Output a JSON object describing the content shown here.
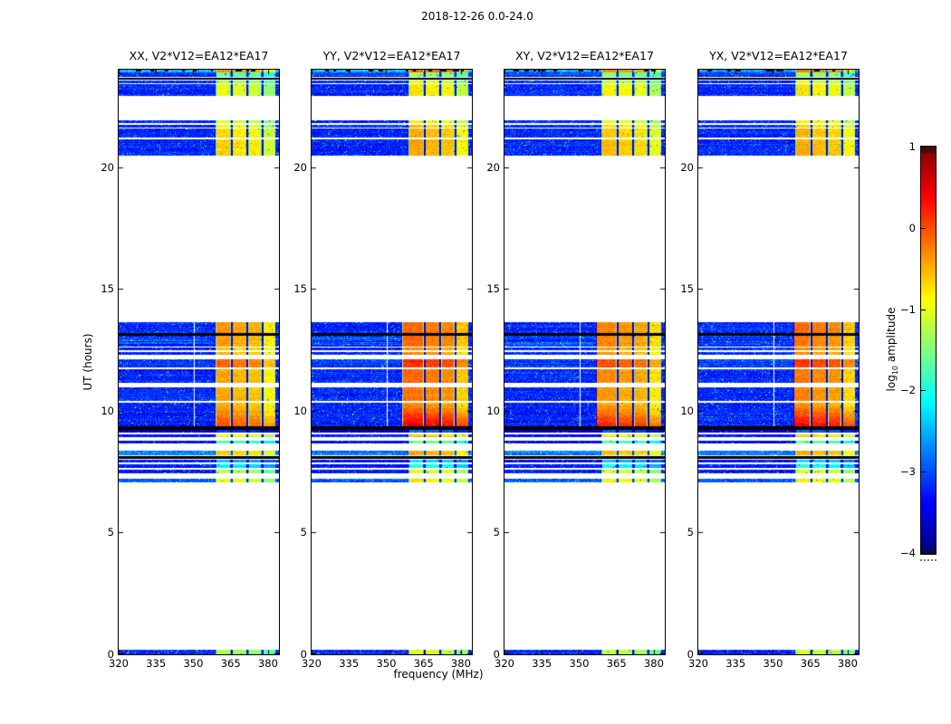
{
  "suptitle": "2018-12-26 0.0-24.0",
  "chart_data": {
    "type": "heatmap",
    "suptitle": "2018-12-26 0.0-24.0",
    "description": "Four dynamic-spectrum (frequency vs UT time) correlation amplitude panels, jet colormap, mostly low-amplitude blue background with bright RFI band near 358-383 MHz and data gaps (white) / flagged rows (black).",
    "panels": [
      {
        "title": "XX, V2*V12=EA12*EA17",
        "seed": 11,
        "bright_boost": 0.0,
        "first_col_shift": 0.0,
        "bottom_gradient": 0.55
      },
      {
        "title": "YY, V2*V12=EA12*EA17",
        "seed": 22,
        "bright_boost": 0.25,
        "first_col_shift": -2.5,
        "bottom_gradient": 0.9
      },
      {
        "title": "XY, V2*V12=EA12*EA17",
        "seed": 33,
        "bright_boost": 0.1,
        "first_col_shift": -2.0,
        "bottom_gradient": 0.7
      },
      {
        "title": "YX, V2*V12=EA12*EA17",
        "seed": 44,
        "bright_boost": 0.2,
        "first_col_shift": -0.5,
        "bottom_gradient": 0.8
      }
    ],
    "x_axis": {
      "label": "frequency (MHz)",
      "range": [
        320,
        384.4
      ],
      "ticks": [
        "320",
        "335",
        "350",
        "365",
        "380"
      ],
      "tick_values": [
        320,
        335,
        350,
        365,
        380
      ]
    },
    "y_axis": {
      "label": "UT (hours)",
      "range": [
        0,
        24
      ],
      "ticks": [
        "0",
        "5",
        "10",
        "15",
        "20"
      ],
      "tick_values": [
        0,
        5,
        10,
        15,
        20
      ]
    },
    "colorbar": {
      "label_parts": {
        "prefix": "log",
        "sub": "10",
        "suffix": " amplitude"
      },
      "range": [
        -4,
        1
      ],
      "ticks": [
        "1",
        "0",
        "−1",
        "−2",
        "−3",
        "−4"
      ],
      "tick_values": [
        1,
        0,
        -1,
        -2,
        -3,
        -4
      ],
      "colormap": "jet"
    },
    "freq_structure": {
      "base_band": [
        320,
        358.8
      ],
      "bright_columns": [
        [
          358.8,
          364.8
        ],
        [
          365.6,
          371.2
        ],
        [
          372.0,
          377.2
        ],
        [
          378.0,
          382.8
        ]
      ],
      "column_mods": [
        0.15,
        0.05,
        0.0,
        -0.3
      ],
      "white_vline_mhz": 350.3
    },
    "time_segments": [
      {
        "t0": 0.0,
        "t1": 0.18,
        "kind": "data",
        "base": -3.2,
        "bright": -1.4
      },
      {
        "t0": 7.06,
        "t1": 7.21,
        "kind": "data",
        "base": -2.9,
        "bright": -1.1
      },
      {
        "t0": 7.43,
        "t1": 7.58,
        "kind": "data",
        "base": -3.3,
        "bright": -1.3
      },
      {
        "t0": 7.66,
        "t1": 7.81,
        "kind": "data",
        "base": -3.3,
        "bright": -2.3
      },
      {
        "t0": 7.88,
        "t1": 7.99,
        "kind": "data",
        "base": -3.3,
        "bright": -2.6
      },
      {
        "t0": 8.03,
        "t1": 8.13,
        "kind": "black"
      },
      {
        "t0": 8.18,
        "t1": 8.36,
        "kind": "data",
        "base": -2.8,
        "bright": -0.8
      },
      {
        "t0": 8.66,
        "t1": 8.76,
        "kind": "data",
        "base": -3.4,
        "bright": -1.9
      },
      {
        "t0": 8.9,
        "t1": 9.02,
        "kind": "data",
        "base": -3.3,
        "bright": -1.0
      },
      {
        "t0": 9.11,
        "t1": 9.2,
        "kind": "data",
        "base": -3.7,
        "bright": -3.2
      },
      {
        "t0": 9.22,
        "t1": 9.37,
        "kind": "black"
      },
      {
        "t0": 9.37,
        "t1": 10.34,
        "kind": "data",
        "base": -3.2,
        "bright": -0.45,
        "gradient": true,
        "vline": true,
        "wide": true
      },
      {
        "t0": 10.41,
        "t1": 10.97,
        "kind": "data",
        "base": -3.2,
        "bright": -0.6,
        "vline": true,
        "wide": true
      },
      {
        "t0": 11.15,
        "t1": 11.71,
        "kind": "data",
        "base": -3.2,
        "bright": -0.55,
        "vline": true,
        "wide": true
      },
      {
        "t0": 11.78,
        "t1": 12.12,
        "kind": "data",
        "base": -3.1,
        "bright": -0.25,
        "vline": true,
        "wide": true
      },
      {
        "t0": 12.3,
        "t1": 12.42,
        "kind": "data",
        "base": -3.2,
        "bright": -0.65,
        "vline": true,
        "wide": true
      },
      {
        "t0": 12.47,
        "t1": 12.58,
        "kind": "data",
        "base": -3.2,
        "bright": -0.65,
        "vline": true,
        "wide": true
      },
      {
        "t0": 12.64,
        "t1": 13.09,
        "kind": "data",
        "base": -3.15,
        "bright": -0.55,
        "streaky": true,
        "vline": true,
        "wide": true
      },
      {
        "t0": 13.09,
        "t1": 13.2,
        "kind": "black"
      },
      {
        "t0": 13.2,
        "t1": 13.62,
        "kind": "data",
        "base": -3.2,
        "bright": -0.5,
        "vline": true,
        "wide": true
      },
      {
        "t0": 20.48,
        "t1": 21.15,
        "kind": "data",
        "base": -3.2,
        "bright": -0.8
      },
      {
        "t0": 21.22,
        "t1": 21.6,
        "kind": "data",
        "base": -3.2,
        "bright": -0.85
      },
      {
        "t0": 21.64,
        "t1": 21.74,
        "kind": "data",
        "base": -3.2,
        "bright": -1.0
      },
      {
        "t0": 21.8,
        "t1": 21.92,
        "kind": "data",
        "base": -3.3,
        "bright": -1.2
      },
      {
        "t0": 22.94,
        "t1": 23.4,
        "kind": "data",
        "base": -3.2,
        "bright": -1.1
      },
      {
        "t0": 23.46,
        "t1": 23.56,
        "kind": "data",
        "base": -3.2,
        "bright": -1.4
      },
      {
        "t0": 23.6,
        "t1": 23.66,
        "kind": "black"
      },
      {
        "t0": 23.7,
        "t1": 23.88,
        "kind": "data",
        "base": -3.1,
        "bright": -1.7
      },
      {
        "t0": 23.9,
        "t1": 24.0,
        "kind": "data",
        "base": -2.5,
        "bright": -0.5,
        "dashes": true
      }
    ]
  }
}
